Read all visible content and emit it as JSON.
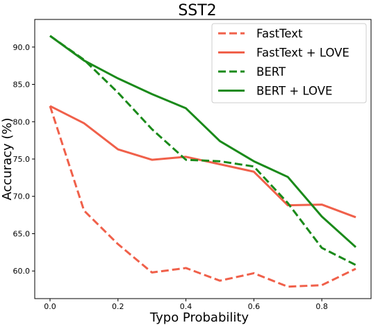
{
  "chart_data": {
    "type": "line",
    "title": "SST2",
    "xlabel": "Typo Probability",
    "ylabel": "Accuracy (%)",
    "x": [
      0.0,
      0.1,
      0.2,
      0.3,
      0.4,
      0.5,
      0.6,
      0.7,
      0.8,
      0.9
    ],
    "xlim": [
      -0.045,
      0.945
    ],
    "ylim": [
      56.3,
      93.7
    ],
    "xticks": [
      0.0,
      0.2,
      0.4,
      0.6,
      0.8
    ],
    "xtick_labels": [
      "0.0",
      "0.2",
      "0.4",
      "0.6",
      "0.8"
    ],
    "yticks": [
      60,
      65,
      70,
      75,
      80,
      85,
      90
    ],
    "ytick_labels": [
      "60.0",
      "65.0",
      "70.0",
      "75.0",
      "80.0",
      "85.0",
      "90.0"
    ],
    "grid": false,
    "legend_position": "top-right",
    "series": [
      {
        "name": "FastText",
        "color": "#f0604a",
        "style": "dashed",
        "values": [
          82.1,
          68.1,
          63.6,
          59.8,
          60.4,
          58.7,
          59.7,
          57.9,
          58.1,
          60.3
        ]
      },
      {
        "name": "FastText + LOVE",
        "color": "#f0604a",
        "style": "solid",
        "values": [
          82.1,
          79.8,
          76.3,
          74.9,
          75.3,
          74.3,
          73.3,
          68.8,
          68.9,
          67.2
        ]
      },
      {
        "name": "BERT",
        "color": "#1a8a1a",
        "style": "dashed",
        "values": [
          91.5,
          88.3,
          83.9,
          79.0,
          74.9,
          74.7,
          74.0,
          69.1,
          63.1,
          60.8
        ]
      },
      {
        "name": "BERT + LOVE",
        "color": "#1a8a1a",
        "style": "solid",
        "values": [
          91.5,
          88.2,
          85.8,
          83.7,
          81.8,
          77.4,
          74.7,
          72.6,
          67.3,
          63.2
        ]
      }
    ]
  }
}
